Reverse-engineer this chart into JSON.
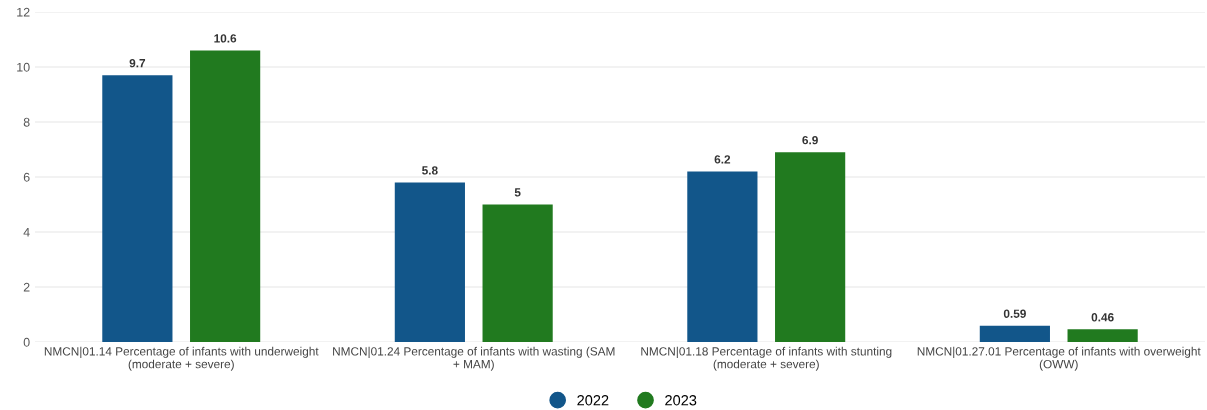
{
  "chart_data": {
    "type": "bar",
    "categories": [
      "NMCN|01.14 Percentage of infants with underweight (moderate + severe)",
      "NMCN|01.24 Percentage of infants with wasting (SAM + MAM)",
      "NMCN|01.18 Percentage of infants with stunting (moderate + severe)",
      "NMCN|01.27.01 Percentage of infants with overweight (OWW)"
    ],
    "series": [
      {
        "name": "2022",
        "color": "#12568a",
        "values": [
          9.7,
          5.8,
          6.2,
          0.59
        ]
      },
      {
        "name": "2023",
        "color": "#217a1f",
        "values": [
          10.6,
          5,
          6.9,
          0.46
        ]
      }
    ],
    "ylim": [
      0,
      12
    ],
    "yticks": [
      0,
      2,
      4,
      6,
      8,
      10,
      12
    ],
    "grid": "y",
    "legend": "bottom",
    "data_labels": true
  }
}
